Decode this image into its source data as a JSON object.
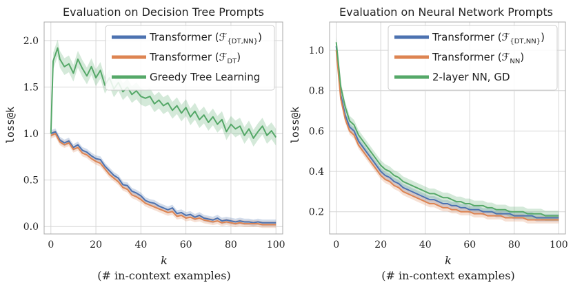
{
  "chart_data": [
    {
      "type": "line",
      "title": "Evaluation on Decision Tree Prompts",
      "ylabel": "loss@k",
      "xlabel_main": "k",
      "xlabel_sub": "(# in-context examples)",
      "xlim": [
        -3,
        103
      ],
      "ylim": [
        -0.08,
        2.2
      ],
      "x_ticks": [
        "0",
        "20",
        "40",
        "60",
        "80",
        "100"
      ],
      "y_ticks": [
        "0.0",
        "0.5",
        "1.0",
        "1.5",
        "2.0"
      ],
      "legend_position": "top-right",
      "series": [
        {
          "name": "Transformer (ℱ{DT,NN})",
          "color": "#4c72b0",
          "x": [
            0,
            2,
            4,
            6,
            8,
            10,
            12,
            14,
            16,
            18,
            20,
            22,
            24,
            26,
            28,
            30,
            32,
            34,
            36,
            38,
            40,
            42,
            44,
            46,
            48,
            50,
            52,
            54,
            56,
            58,
            60,
            62,
            64,
            66,
            68,
            70,
            72,
            74,
            76,
            78,
            80,
            82,
            84,
            86,
            88,
            90,
            92,
            94,
            96,
            98,
            100
          ],
          "values": [
            1.0,
            1.02,
            0.93,
            0.9,
            0.92,
            0.85,
            0.88,
            0.82,
            0.8,
            0.76,
            0.73,
            0.72,
            0.65,
            0.6,
            0.55,
            0.52,
            0.45,
            0.44,
            0.38,
            0.36,
            0.33,
            0.28,
            0.26,
            0.25,
            0.22,
            0.2,
            0.18,
            0.2,
            0.14,
            0.15,
            0.12,
            0.13,
            0.1,
            0.12,
            0.09,
            0.08,
            0.07,
            0.09,
            0.06,
            0.07,
            0.06,
            0.05,
            0.06,
            0.05,
            0.05,
            0.04,
            0.05,
            0.04,
            0.04,
            0.04,
            0.04
          ]
        },
        {
          "name": "Transformer (ℱDT)",
          "color": "#dd8452",
          "x": [
            0,
            2,
            4,
            6,
            8,
            10,
            12,
            14,
            16,
            18,
            20,
            22,
            24,
            26,
            28,
            30,
            32,
            34,
            36,
            38,
            40,
            42,
            44,
            46,
            48,
            50,
            52,
            54,
            56,
            58,
            60,
            62,
            64,
            66,
            68,
            70,
            72,
            74,
            76,
            78,
            80,
            82,
            84,
            86,
            88,
            90,
            92,
            94,
            96,
            98,
            100
          ],
          "values": [
            0.98,
            1.0,
            0.91,
            0.88,
            0.9,
            0.83,
            0.85,
            0.79,
            0.77,
            0.73,
            0.7,
            0.68,
            0.62,
            0.56,
            0.52,
            0.48,
            0.42,
            0.4,
            0.34,
            0.32,
            0.29,
            0.25,
            0.23,
            0.21,
            0.19,
            0.17,
            0.15,
            0.16,
            0.11,
            0.12,
            0.09,
            0.1,
            0.08,
            0.09,
            0.07,
            0.06,
            0.05,
            0.06,
            0.04,
            0.05,
            0.04,
            0.03,
            0.04,
            0.03,
            0.03,
            0.03,
            0.03,
            0.02,
            0.02,
            0.02,
            0.02
          ]
        },
        {
          "name": "Greedy Tree Learning",
          "color": "#55a868",
          "x": [
            0,
            1,
            2,
            3,
            4,
            6,
            8,
            10,
            12,
            14,
            16,
            18,
            20,
            22,
            24,
            26,
            28,
            30,
            32,
            34,
            36,
            38,
            40,
            42,
            44,
            46,
            48,
            50,
            52,
            54,
            56,
            58,
            60,
            62,
            64,
            66,
            68,
            70,
            72,
            74,
            76,
            78,
            80,
            82,
            84,
            86,
            88,
            90,
            92,
            94,
            96,
            98,
            100
          ],
          "values": [
            1.0,
            1.78,
            1.85,
            1.92,
            1.8,
            1.72,
            1.75,
            1.65,
            1.8,
            1.7,
            1.62,
            1.72,
            1.6,
            1.68,
            1.52,
            1.6,
            1.48,
            1.55,
            1.45,
            1.5,
            1.42,
            1.46,
            1.4,
            1.38,
            1.4,
            1.32,
            1.36,
            1.3,
            1.33,
            1.25,
            1.3,
            1.22,
            1.28,
            1.18,
            1.24,
            1.15,
            1.2,
            1.12,
            1.18,
            1.1,
            1.15,
            1.02,
            1.1,
            1.05,
            1.08,
            0.98,
            1.05,
            0.95,
            1.02,
            1.08,
            0.98,
            1.03,
            0.96
          ]
        }
      ]
    },
    {
      "type": "line",
      "title": "Evaluation on Neural Network Prompts",
      "ylabel": "loss@k",
      "xlabel_main": "k",
      "xlabel_sub": "(# in-context examples)",
      "xlim": [
        -3,
        103
      ],
      "ylim": [
        0.09,
        1.14
      ],
      "x_ticks": [
        "0",
        "20",
        "40",
        "60",
        "80",
        "100"
      ],
      "y_ticks": [
        "0.2",
        "0.4",
        "0.6",
        "0.8",
        "1.0"
      ],
      "legend_position": "top-right",
      "series": [
        {
          "name": "Transformer (ℱ{DT,NN})",
          "color": "#4c72b0",
          "x": [
            0,
            2,
            4,
            6,
            8,
            10,
            12,
            14,
            16,
            18,
            20,
            22,
            24,
            26,
            28,
            30,
            32,
            34,
            36,
            38,
            40,
            42,
            44,
            46,
            48,
            50,
            52,
            54,
            56,
            58,
            60,
            62,
            64,
            66,
            68,
            70,
            72,
            74,
            76,
            78,
            80,
            82,
            84,
            86,
            88,
            90,
            92,
            94,
            96,
            98,
            100
          ],
          "values": [
            1.02,
            0.78,
            0.68,
            0.62,
            0.6,
            0.55,
            0.52,
            0.49,
            0.46,
            0.43,
            0.4,
            0.38,
            0.37,
            0.35,
            0.34,
            0.32,
            0.31,
            0.3,
            0.29,
            0.28,
            0.27,
            0.26,
            0.26,
            0.25,
            0.24,
            0.24,
            0.23,
            0.23,
            0.22,
            0.22,
            0.21,
            0.21,
            0.21,
            0.2,
            0.2,
            0.2,
            0.19,
            0.19,
            0.19,
            0.19,
            0.18,
            0.18,
            0.18,
            0.18,
            0.18,
            0.17,
            0.17,
            0.17,
            0.17,
            0.17,
            0.17
          ]
        },
        {
          "name": "Transformer (ℱNN)",
          "color": "#dd8452",
          "x": [
            0,
            2,
            4,
            6,
            8,
            10,
            12,
            14,
            16,
            18,
            20,
            22,
            24,
            26,
            28,
            30,
            32,
            34,
            36,
            38,
            40,
            42,
            44,
            46,
            48,
            50,
            52,
            54,
            56,
            58,
            60,
            62,
            64,
            66,
            68,
            70,
            72,
            74,
            76,
            78,
            80,
            82,
            84,
            86,
            88,
            90,
            92,
            94,
            96,
            98,
            100
          ],
          "values": [
            1.0,
            0.76,
            0.66,
            0.6,
            0.58,
            0.53,
            0.5,
            0.47,
            0.44,
            0.41,
            0.38,
            0.36,
            0.35,
            0.33,
            0.32,
            0.3,
            0.29,
            0.28,
            0.27,
            0.26,
            0.25,
            0.24,
            0.24,
            0.23,
            0.22,
            0.22,
            0.21,
            0.21,
            0.2,
            0.2,
            0.2,
            0.19,
            0.19,
            0.19,
            0.18,
            0.18,
            0.18,
            0.18,
            0.17,
            0.17,
            0.17,
            0.17,
            0.17,
            0.16,
            0.16,
            0.16,
            0.16,
            0.16,
            0.16,
            0.16,
            0.16
          ]
        },
        {
          "name": "2-layer NN, GD",
          "color": "#55a868",
          "x": [
            0,
            2,
            4,
            6,
            8,
            10,
            12,
            14,
            16,
            18,
            20,
            22,
            24,
            26,
            28,
            30,
            32,
            34,
            36,
            38,
            40,
            42,
            44,
            46,
            48,
            50,
            52,
            54,
            56,
            58,
            60,
            62,
            64,
            66,
            68,
            70,
            72,
            74,
            76,
            78,
            80,
            82,
            84,
            86,
            88,
            90,
            92,
            94,
            96,
            98,
            100
          ],
          "values": [
            1.04,
            0.82,
            0.72,
            0.65,
            0.63,
            0.58,
            0.55,
            0.52,
            0.49,
            0.46,
            0.43,
            0.41,
            0.4,
            0.38,
            0.37,
            0.35,
            0.34,
            0.33,
            0.32,
            0.31,
            0.3,
            0.29,
            0.29,
            0.28,
            0.27,
            0.27,
            0.26,
            0.25,
            0.25,
            0.24,
            0.24,
            0.23,
            0.23,
            0.23,
            0.22,
            0.22,
            0.21,
            0.21,
            0.21,
            0.2,
            0.2,
            0.2,
            0.2,
            0.19,
            0.19,
            0.19,
            0.19,
            0.18,
            0.18,
            0.18,
            0.18
          ]
        }
      ]
    }
  ]
}
